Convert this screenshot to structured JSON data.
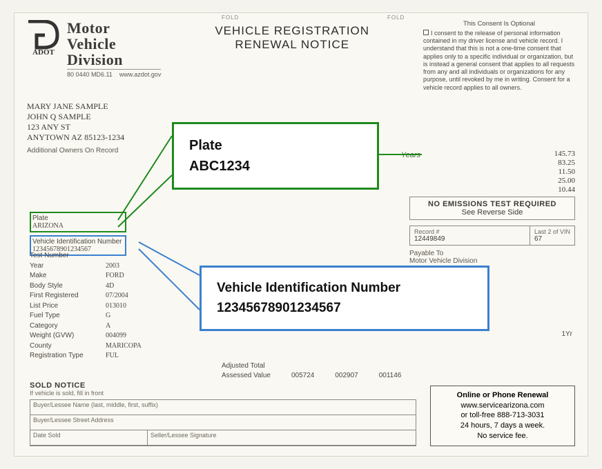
{
  "header": {
    "agency_line1": "Motor",
    "agency_line2": "Vehicle",
    "agency_line3": "Division",
    "logo_label": "ADOT",
    "logo_sub_left": "80 0440 MD6.11",
    "logo_sub_right": "www.azdot.gov",
    "title_line1": "VEHICLE REGISTRATION",
    "title_line2": "RENEWAL NOTICE",
    "fold_left": "FOLD",
    "fold_right": "FOLD"
  },
  "consent": {
    "heading": "This Consent Is Optional",
    "body": "I consent to the release of personal information contained in my driver license and vehicle record. I understand that this is not a one-time consent that applies only to a specific individual or organization, but is instead a general consent that applies to all requests from any and all individuals or organizations for any purpose, until revoked by me in writing. Consent for a vehicle record applies to all owners."
  },
  "address": {
    "l1": "MARY JANE SAMPLE",
    "l2": "JOHN Q SAMPLE",
    "l3": "123 ANY ST",
    "l4": "ANYTOWN AZ  85123-1234",
    "addl": "Additional Owners On Record"
  },
  "fees": {
    "years_label": "Years",
    "rows": [
      {
        "amt": "145.73"
      },
      {
        "amt": "83.25"
      },
      {
        "amt": "11.50"
      },
      {
        "amt": "25.00"
      },
      {
        "amt": "10.44"
      }
    ]
  },
  "emissions": {
    "title": "NO EMISSIONS TEST REQUIRED",
    "sub": "See Reverse Side"
  },
  "record": {
    "rec_label": "Record #",
    "rec_value": "12449849",
    "vin_label": "Last 2 of VIN",
    "vin_value": "67",
    "payable_label": "Payable To",
    "payable_value": "Motor Vehicle Division"
  },
  "plate_small": {
    "label": "Plate",
    "value": "ARIZONA"
  },
  "vin_small": {
    "label": "Vehicle Identification Number",
    "value": "12345678901234567"
  },
  "details": [
    {
      "k": "Test Number",
      "v": ""
    },
    {
      "k": "Year",
      "v": "2003"
    },
    {
      "k": "Make",
      "v": "FORD"
    },
    {
      "k": "Body Style",
      "v": "4D"
    },
    {
      "k": "First Registered",
      "v": "07/2004"
    },
    {
      "k": "List Price",
      "v": "013010"
    },
    {
      "k": "Fuel Type",
      "v": "G"
    },
    {
      "k": "Category",
      "v": "A"
    },
    {
      "k": "Weight (GVW)",
      "v": "004099"
    },
    {
      "k": "County",
      "v": "MARICOPA"
    },
    {
      "k": "Registration Type",
      "v": "FUL"
    }
  ],
  "adjusted": {
    "label1": "Adjusted Total",
    "label2": "Assessed Value",
    "v1": "005724",
    "v2": "002907",
    "v3": "001146"
  },
  "oneyr": "1Yr",
  "sold": {
    "heading": "SOLD NOTICE",
    "sub": "If vehicle is sold, fill in front",
    "c1": "Buyer/Lessee Name (last, middle, first, suffix)",
    "c2": "Buyer/Lessee Street Address",
    "c3": "Date Sold",
    "c4": "Seller/Lessee Signature"
  },
  "renewal": {
    "title": "Online or Phone Renewal",
    "url": "www.servicearizona.com",
    "or": "or toll-free 888-713-3031",
    "hours": "24 hours, 7 days a week.",
    "fee": "No service fee."
  },
  "callouts": {
    "plate_label": "Plate",
    "plate_value": "ABC1234",
    "vin_label": "Vehicle Identification Number",
    "vin_value": "12345678901234567"
  },
  "colors": {
    "green": "#1e8a1e",
    "blue": "#3a7fcf"
  }
}
